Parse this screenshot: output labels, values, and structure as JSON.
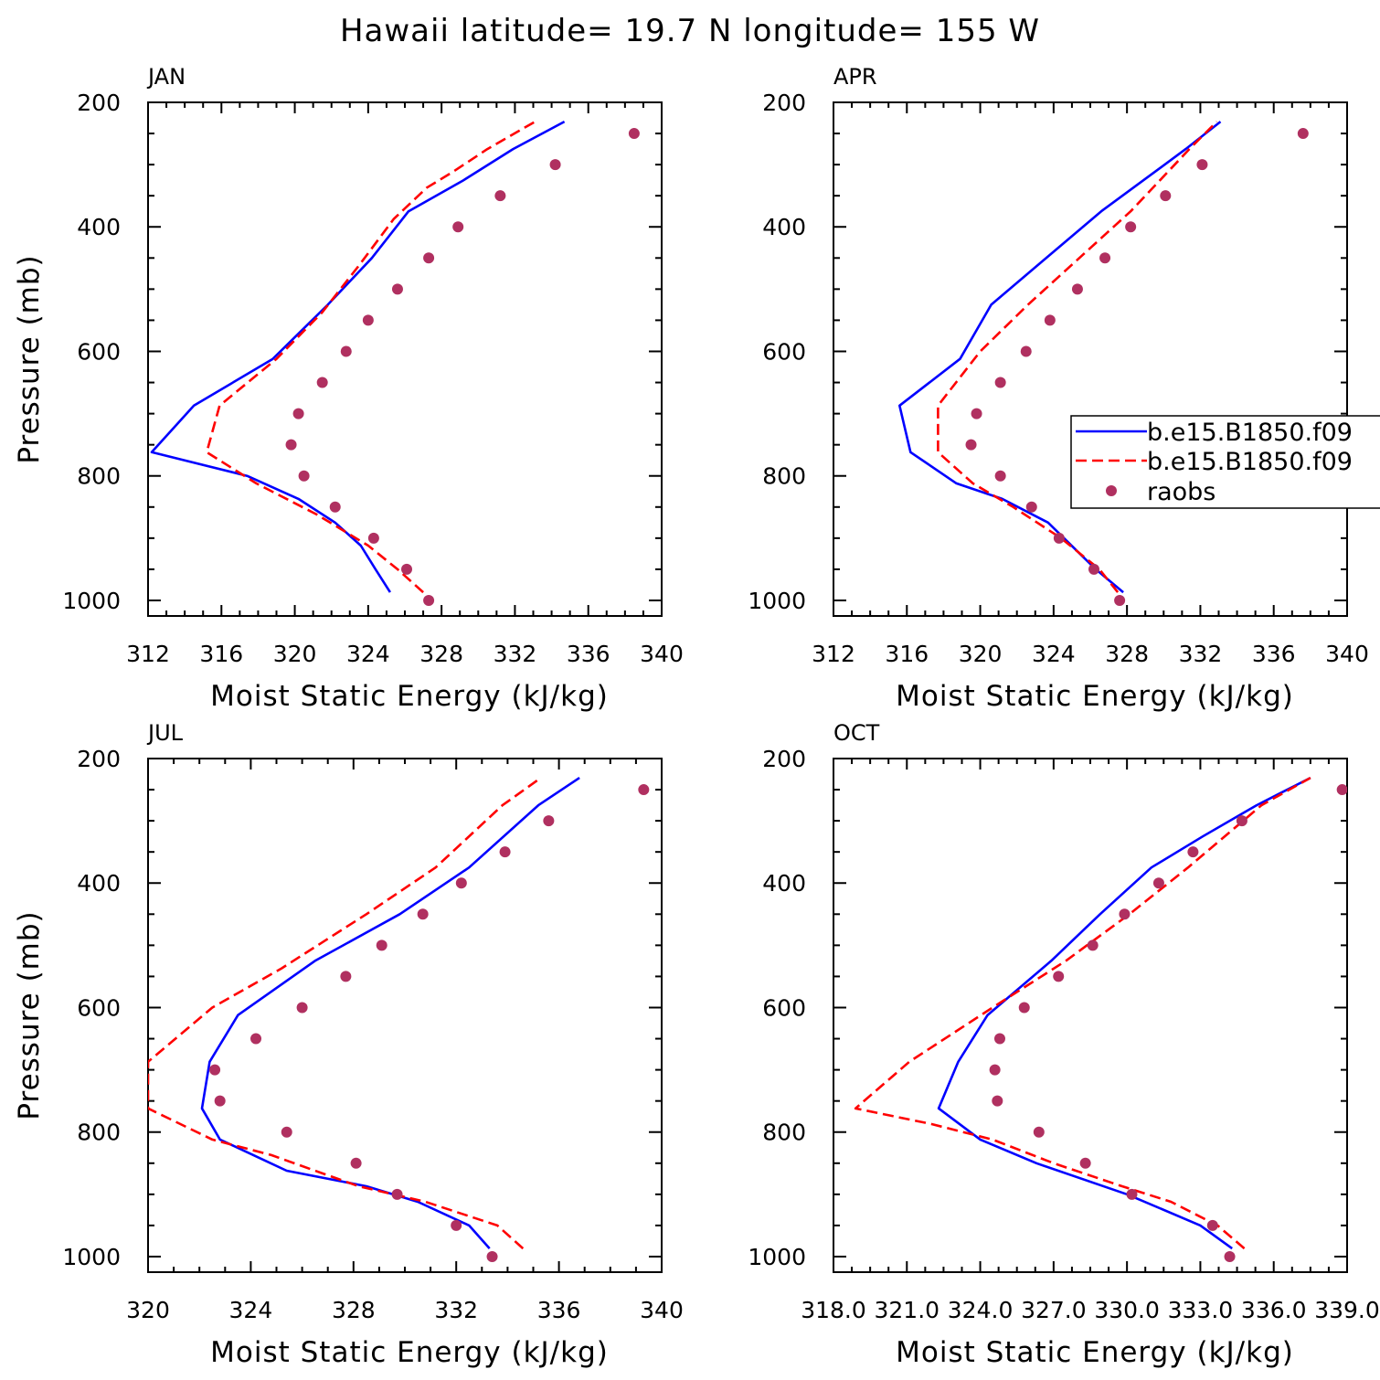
{
  "title": "Hawaii  latitude= 19.7 N longitude= 155 W",
  "legend": {
    "entries": [
      {
        "label": "b.e15.B1850.f09",
        "style": "solid",
        "color": "#0000ff"
      },
      {
        "label": "b.e15.B1850.f09",
        "style": "dashed",
        "color": "#ff0000"
      },
      {
        "label": "raobs",
        "style": "marker",
        "color": "#b03060"
      }
    ]
  },
  "chart_data": [
    {
      "panel": "JAN",
      "type": "line",
      "xlabel": "Moist Static Energy (kJ/kg)",
      "ylabel": "Pressure (mb)",
      "xlim": [
        312,
        340
      ],
      "ylim": [
        1025,
        200
      ],
      "xticks": [
        312,
        316,
        320,
        324,
        328,
        332,
        336,
        340
      ],
      "xtick_labels": [
        "312",
        "316",
        "320",
        "324",
        "328",
        "332",
        "336",
        "340"
      ],
      "yticks": [
        200,
        400,
        600,
        800,
        1000
      ],
      "ytick_labels": [
        "200",
        "400",
        "600",
        "800",
        "1000"
      ],
      "series": [
        {
          "style": "solid",
          "color": "#0000ff",
          "points": [
            [
              325.2,
              987
            ],
            [
              324.4,
              950
            ],
            [
              323.6,
              912
            ],
            [
              322.2,
              875
            ],
            [
              320.2,
              837
            ],
            [
              317.4,
              800
            ],
            [
              312.2,
              762
            ],
            [
              314.5,
              687
            ],
            [
              318.8,
              612
            ],
            [
              321.8,
              525
            ],
            [
              324.2,
              450
            ],
            [
              326.2,
              375
            ],
            [
              329.2,
              325
            ],
            [
              331.9,
              275
            ],
            [
              334.7,
              231
            ]
          ]
        },
        {
          "style": "dashed",
          "color": "#ff0000",
          "points": [
            [
              327.0,
              987
            ],
            [
              325.6,
              950
            ],
            [
              324.0,
              912
            ],
            [
              321.2,
              862
            ],
            [
              317.9,
              812
            ],
            [
              315.2,
              762
            ],
            [
              315.9,
              687
            ],
            [
              319.0,
              612
            ],
            [
              321.5,
              537
            ],
            [
              323.5,
              462
            ],
            [
              325.4,
              387
            ],
            [
              327.2,
              337
            ],
            [
              328.6,
              312
            ],
            [
              330.5,
              275
            ],
            [
              333.1,
              231
            ]
          ]
        },
        {
          "style": "marker",
          "color": "#b03060",
          "points": [
            [
              327.3,
              1000
            ],
            [
              326.1,
              950
            ],
            [
              324.3,
              900
            ],
            [
              322.2,
              850
            ],
            [
              320.5,
              800
            ],
            [
              319.8,
              750
            ],
            [
              320.2,
              700
            ],
            [
              321.5,
              650
            ],
            [
              322.8,
              600
            ],
            [
              324.0,
              550
            ],
            [
              325.6,
              500
            ],
            [
              327.3,
              450
            ],
            [
              328.9,
              400
            ],
            [
              331.2,
              350
            ],
            [
              334.2,
              300
            ],
            [
              338.5,
              250
            ]
          ]
        }
      ]
    },
    {
      "panel": "APR",
      "type": "line",
      "xlabel": "Moist Static Energy (kJ/kg)",
      "ylabel": "",
      "xlim": [
        312,
        340
      ],
      "ylim": [
        1025,
        200
      ],
      "xticks": [
        312,
        316,
        320,
        324,
        328,
        332,
        336,
        340
      ],
      "xtick_labels": [
        "312",
        "316",
        "320",
        "324",
        "328",
        "332",
        "336",
        "340"
      ],
      "yticks": [
        200,
        400,
        600,
        800,
        1000
      ],
      "ytick_labels": [
        "200",
        "400",
        "600",
        "800",
        "1000"
      ],
      "series": [
        {
          "style": "solid",
          "color": "#0000ff",
          "points": [
            [
              327.8,
              987
            ],
            [
              326.3,
              950
            ],
            [
              323.7,
              875
            ],
            [
              321.2,
              837
            ],
            [
              318.7,
              812
            ],
            [
              316.2,
              762
            ],
            [
              315.6,
              687
            ],
            [
              318.9,
              612
            ],
            [
              320.6,
              525
            ],
            [
              323.6,
              450
            ],
            [
              326.6,
              375
            ],
            [
              328.9,
              325
            ],
            [
              331.2,
              275
            ],
            [
              333.1,
              231
            ]
          ]
        },
        {
          "style": "dashed",
          "color": "#ff0000",
          "points": [
            [
              327.5,
              987
            ],
            [
              326.5,
              950
            ],
            [
              324.4,
              900
            ],
            [
              321.8,
              850
            ],
            [
              319.6,
              812
            ],
            [
              317.7,
              762
            ],
            [
              317.7,
              687
            ],
            [
              320.0,
              600
            ],
            [
              322.6,
              525
            ],
            [
              325.4,
              450
            ],
            [
              328.2,
              375
            ],
            [
              329.8,
              325
            ],
            [
              331.4,
              275
            ],
            [
              332.9,
              231
            ]
          ]
        },
        {
          "style": "marker",
          "color": "#b03060",
          "points": [
            [
              327.6,
              1000
            ],
            [
              326.2,
              950
            ],
            [
              324.3,
              900
            ],
            [
              322.8,
              850
            ],
            [
              321.1,
              800
            ],
            [
              319.5,
              750
            ],
            [
              319.8,
              700
            ],
            [
              321.1,
              650
            ],
            [
              322.5,
              600
            ],
            [
              323.8,
              550
            ],
            [
              325.3,
              500
            ],
            [
              326.8,
              450
            ],
            [
              328.2,
              400
            ],
            [
              330.1,
              350
            ],
            [
              332.1,
              300
            ],
            [
              337.6,
              250
            ]
          ]
        }
      ]
    },
    {
      "panel": "JUL",
      "type": "line",
      "xlabel": "Moist Static Energy (kJ/kg)",
      "ylabel": "Pressure (mb)",
      "xlim": [
        320,
        340
      ],
      "ylim": [
        1025,
        200
      ],
      "xticks": [
        320,
        324,
        328,
        332,
        336,
        340
      ],
      "xtick_labels": [
        "320",
        "324",
        "328",
        "332",
        "336",
        "340"
      ],
      "yticks": [
        200,
        400,
        600,
        800,
        1000
      ],
      "ytick_labels": [
        "200",
        "400",
        "600",
        "800",
        "1000"
      ],
      "series": [
        {
          "style": "solid",
          "color": "#0000ff",
          "points": [
            [
              333.3,
              987
            ],
            [
              332.5,
              950
            ],
            [
              330.5,
              912
            ],
            [
              328.5,
              887
            ],
            [
              325.4,
              862
            ],
            [
              322.8,
              812
            ],
            [
              322.1,
              762
            ],
            [
              322.4,
              687
            ],
            [
              323.5,
              612
            ],
            [
              326.5,
              525
            ],
            [
              329.8,
              450
            ],
            [
              332.5,
              375
            ],
            [
              335.2,
              275
            ],
            [
              336.8,
              231
            ]
          ]
        },
        {
          "style": "dashed",
          "color": "#ff0000",
          "points": [
            [
              334.6,
              987
            ],
            [
              333.6,
              950
            ],
            [
              330.8,
              912
            ],
            [
              328.2,
              887
            ],
            [
              324.8,
              837
            ],
            [
              322.5,
              812
            ],
            [
              320.0,
              762
            ],
            [
              320.0,
              687
            ],
            [
              322.5,
              600
            ],
            [
              325.2,
              537
            ],
            [
              328.5,
              450
            ],
            [
              331.2,
              375
            ],
            [
              333.8,
              275
            ],
            [
              335.3,
              231
            ]
          ]
        },
        {
          "style": "marker",
          "color": "#b03060",
          "points": [
            [
              333.4,
              1000
            ],
            [
              332.0,
              950
            ],
            [
              329.7,
              900
            ],
            [
              328.1,
              850
            ],
            [
              325.4,
              800
            ],
            [
              322.8,
              750
            ],
            [
              322.6,
              700
            ],
            [
              324.2,
              650
            ],
            [
              326.0,
              600
            ],
            [
              327.7,
              550
            ],
            [
              329.1,
              500
            ],
            [
              330.7,
              450
            ],
            [
              332.2,
              400
            ],
            [
              333.9,
              350
            ],
            [
              335.6,
              300
            ],
            [
              339.3,
              250
            ]
          ]
        }
      ]
    },
    {
      "panel": "OCT",
      "type": "line",
      "xlabel": "Moist Static Energy (kJ/kg)",
      "ylabel": "",
      "xlim": [
        318.0,
        339.0
      ],
      "ylim": [
        1025,
        200
      ],
      "xticks": [
        318.0,
        321.0,
        324.0,
        327.0,
        330.0,
        333.0,
        336.0,
        339.0
      ],
      "xtick_labels": [
        "318.0",
        "321.0",
        "324.0",
        "327.0",
        "330.0",
        "333.0",
        "336.0",
        "339.0"
      ],
      "yticks": [
        200,
        400,
        600,
        800,
        1000
      ],
      "ytick_labels": [
        "200",
        "400",
        "600",
        "800",
        "1000"
      ],
      "series": [
        {
          "style": "solid",
          "color": "#0000ff",
          "points": [
            [
              334.3,
              987
            ],
            [
              333.0,
              950
            ],
            [
              330.0,
              900
            ],
            [
              326.3,
              850
            ],
            [
              324.0,
              812
            ],
            [
              322.3,
              762
            ],
            [
              323.1,
              687
            ],
            [
              324.3,
              612
            ],
            [
              326.9,
              525
            ],
            [
              328.9,
              450
            ],
            [
              331.0,
              375
            ],
            [
              333.1,
              325
            ],
            [
              335.3,
              275
            ],
            [
              337.5,
              231
            ]
          ]
        },
        {
          "style": "dashed",
          "color": "#ff0000",
          "points": [
            [
              334.8,
              987
            ],
            [
              333.7,
              950
            ],
            [
              331.8,
              912
            ],
            [
              329.8,
              887
            ],
            [
              327.0,
              850
            ],
            [
              324.5,
              812
            ],
            [
              322.0,
              787
            ],
            [
              318.9,
              762
            ],
            [
              321.1,
              687
            ],
            [
              324.5,
              600
            ],
            [
              327.5,
              525
            ],
            [
              330.1,
              450
            ],
            [
              332.5,
              375
            ],
            [
              335.5,
              275
            ],
            [
              337.5,
              231
            ]
          ]
        },
        {
          "style": "marker",
          "color": "#b03060",
          "points": [
            [
              334.2,
              1000
            ],
            [
              333.5,
              950
            ],
            [
              330.2,
              900
            ],
            [
              328.3,
              850
            ],
            [
              326.4,
              800
            ],
            [
              324.7,
              750
            ],
            [
              324.6,
              700
            ],
            [
              324.8,
              650
            ],
            [
              325.8,
              600
            ],
            [
              327.2,
              550
            ],
            [
              328.6,
              500
            ],
            [
              329.9,
              450
            ],
            [
              331.3,
              400
            ],
            [
              332.7,
              350
            ],
            [
              334.7,
              300
            ],
            [
              338.8,
              250
            ]
          ]
        }
      ]
    }
  ]
}
